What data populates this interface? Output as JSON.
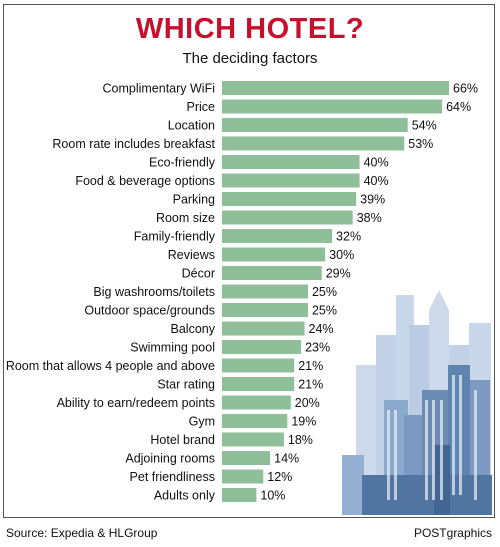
{
  "header": {
    "title": "WHICH HOTEL?",
    "subtitle": "The deciding factors"
  },
  "footer": {
    "source": "Source: Expedia & HLGroup",
    "credit": "POSTgraphics"
  },
  "colors": {
    "title": "#c8102e",
    "bar": "#8fbf98",
    "buildings": "#9eb6d8"
  },
  "chart_data": {
    "type": "bar",
    "orientation": "horizontal",
    "title": "WHICH HOTEL?",
    "subtitle": "The deciding factors",
    "xlabel": "",
    "ylabel": "",
    "unit": "%",
    "xlim": [
      0,
      66
    ],
    "grid": false,
    "legend": "none",
    "categories": [
      "Complimentary WiFi",
      "Price",
      "Location",
      "Room rate includes breakfast",
      "Eco-friendly",
      "Food & beverage options",
      "Parking",
      "Room size",
      "Family-friendly",
      "Reviews",
      "Décor",
      "Big washrooms/toilets",
      "Outdoor space/grounds",
      "Balcony",
      "Swimming pool",
      "Room that allows 4 people and above",
      "Star rating",
      "Ability to earn/redeem points",
      "Gym",
      "Hotel brand",
      "Adjoining rooms",
      "Pet friendliness",
      "Adults only"
    ],
    "values": [
      66,
      64,
      54,
      53,
      40,
      40,
      39,
      38,
      32,
      30,
      29,
      25,
      25,
      24,
      23,
      21,
      21,
      20,
      19,
      18,
      14,
      12,
      10
    ],
    "labels": [
      "66%",
      "64%",
      "54%",
      "53%",
      "40%",
      "40%",
      "39%",
      "38%",
      "32%",
      "30%",
      "29%",
      "25%",
      "25%",
      "24%",
      "23%",
      "21%",
      "21%",
      "20%",
      "19%",
      "18%",
      "14%",
      "12%",
      "10%"
    ]
  }
}
